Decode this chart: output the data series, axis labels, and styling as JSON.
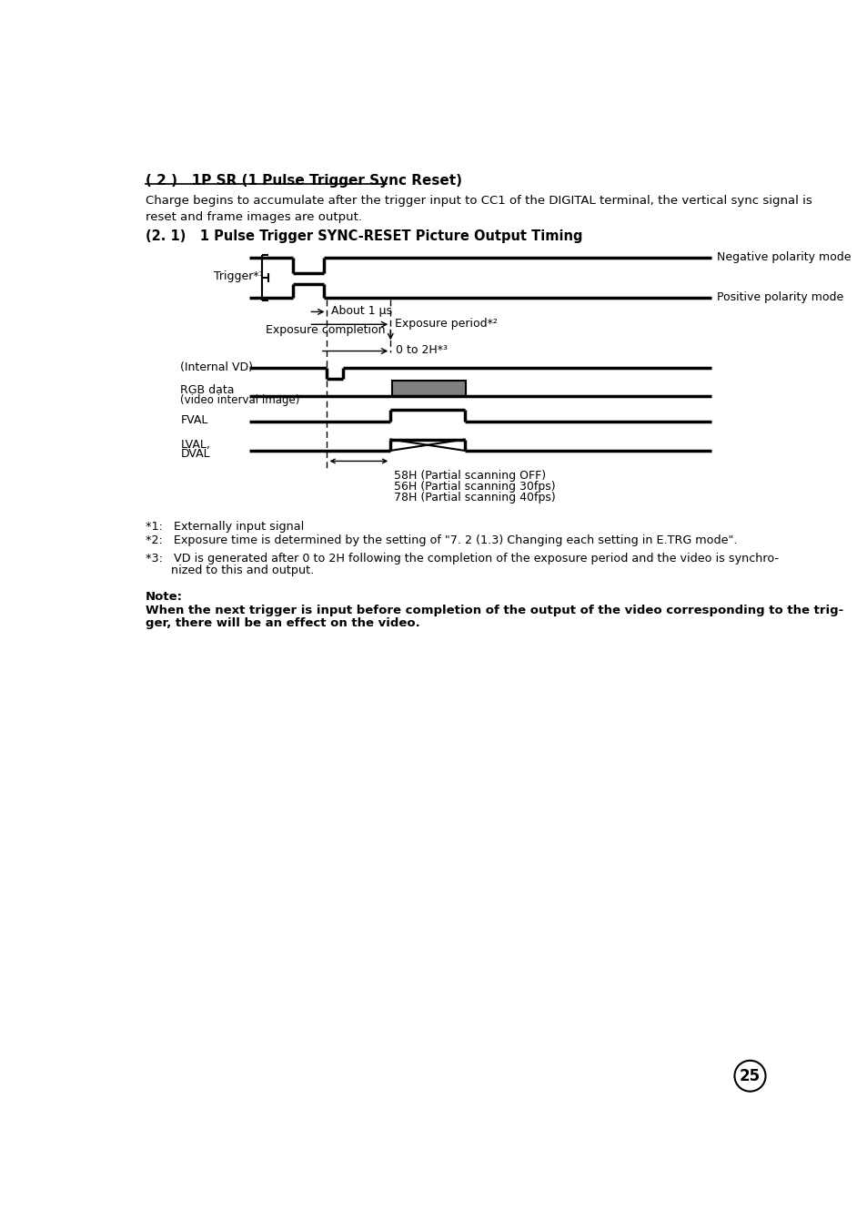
{
  "title_section": "( 2 )   1P SR (1 Pulse Trigger Sync Reset)",
  "intro_text": "Charge begins to accumulate after the trigger input to CC1 of the DIGITAL terminal, the vertical sync signal is\nreset and frame images are output.",
  "subtitle": "(2. 1)   1 Pulse Trigger SYNC-RESET Picture Output Timing",
  "neg_polarity_label": "Negative polarity mode",
  "pos_polarity_label": "Positive polarity mode",
  "trigger_label": "Trigger*¹",
  "about1us_label": "About 1 μs",
  "exposure_period_label": "Exposure period*²",
  "exposure_completion_label": "Exposure completion",
  "zero_to_2H_label": "0 to 2H*³",
  "internal_vd_label": "(Internal VD)",
  "fval_label": "FVAL",
  "scanning_line1": "58H (Partial scanning OFF)",
  "scanning_line2": "56H (Partial scanning 30fps)",
  "scanning_line3": "78H (Partial scanning 40fps)",
  "footnote1": "*1:   Externally input signal",
  "footnote2": "*2:   Exposure time is determined by the setting of \"7. 2 (1.3) Changing each setting in E.TRG mode\".",
  "footnote3a": "*3:   VD is generated after 0 to 2H following the completion of the exposure period and the video is synchro-",
  "footnote3b": "       nized to this and output.",
  "note_label": "Note:",
  "note_bold1": "When the next trigger is input before completion of the output of the video corresponding to the trig-",
  "note_bold2": "ger, there will be an effect on the video.",
  "page_number": "25",
  "bg_color": "#ffffff",
  "line_color": "#000000",
  "gray_fill": "#808080"
}
